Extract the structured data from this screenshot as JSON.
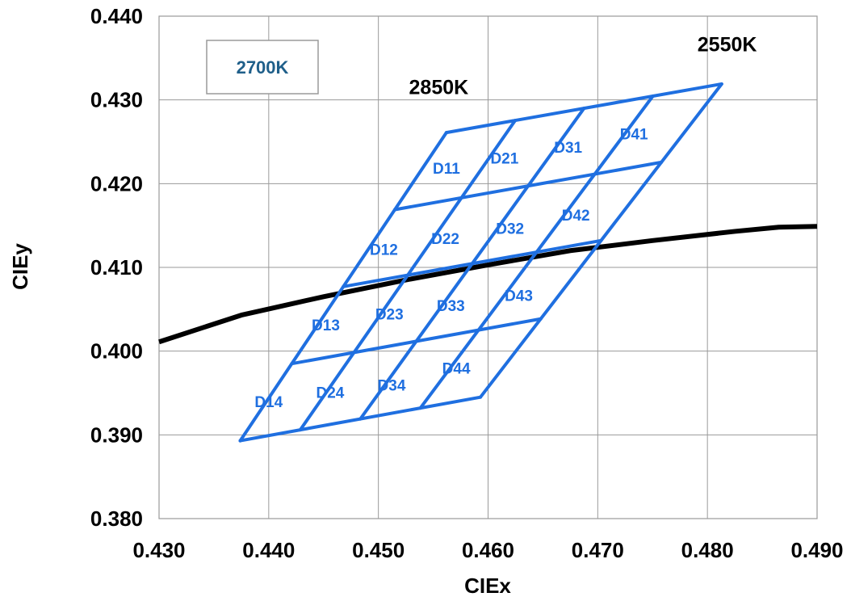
{
  "chart_data": {
    "type": "scatter",
    "xlabel": "CIEx",
    "ylabel": "CIEy",
    "xlim": [
      0.43,
      0.49
    ],
    "ylim": [
      0.38,
      0.44
    ],
    "x_ticks": [
      "0.430",
      "0.440",
      "0.450",
      "0.460",
      "0.470",
      "0.480",
      "0.490"
    ],
    "y_ticks": [
      "0.380",
      "0.390",
      "0.400",
      "0.410",
      "0.420",
      "0.430",
      "0.440"
    ],
    "grid": true,
    "legend_box": "2700K",
    "cct_labels": [
      {
        "text": "2850K",
        "x": 0.4555,
        "y": 0.4307
      },
      {
        "text": "2550K",
        "x": 0.4818,
        "y": 0.4358
      }
    ],
    "planckian_locus": {
      "x": [
        0.43,
        0.4375,
        0.445,
        0.4525,
        0.46,
        0.4675,
        0.475,
        0.4825,
        0.4865,
        0.49
      ],
      "y": [
        0.4011,
        0.4043,
        0.4065,
        0.4085,
        0.4103,
        0.412,
        0.4132,
        0.4143,
        0.4148,
        0.4149
      ]
    },
    "bin_grid": {
      "line_color": "#1f6fe0",
      "corners": {
        "top_left": [
          0.4562,
          0.4261
        ],
        "top_right": [
          0.4813,
          0.4319
        ],
        "bottom_left": [
          0.4374,
          0.3893
        ],
        "bottom_right": [
          0.4593,
          0.3945
        ]
      },
      "divisions": 4,
      "bins": [
        {
          "name": "D11",
          "x": 0.4562,
          "y": 0.4212
        },
        {
          "name": "D21",
          "x": 0.4615,
          "y": 0.4224
        },
        {
          "name": "D31",
          "x": 0.4673,
          "y": 0.4237
        },
        {
          "name": "D41",
          "x": 0.4733,
          "y": 0.4253
        },
        {
          "name": "D12",
          "x": 0.4505,
          "y": 0.4115
        },
        {
          "name": "D22",
          "x": 0.4561,
          "y": 0.4128
        },
        {
          "name": "D32",
          "x": 0.462,
          "y": 0.414
        },
        {
          "name": "D42",
          "x": 0.468,
          "y": 0.4156
        },
        {
          "name": "D13",
          "x": 0.4452,
          "y": 0.4025
        },
        {
          "name": "D23",
          "x": 0.451,
          "y": 0.4038
        },
        {
          "name": "D33",
          "x": 0.4566,
          "y": 0.4048
        },
        {
          "name": "D43",
          "x": 0.4628,
          "y": 0.406
        },
        {
          "name": "D14",
          "x": 0.44,
          "y": 0.3933
        },
        {
          "name": "D24",
          "x": 0.4456,
          "y": 0.3944
        },
        {
          "name": "D34",
          "x": 0.4512,
          "y": 0.3953
        },
        {
          "name": "D44",
          "x": 0.4571,
          "y": 0.3973
        }
      ]
    }
  }
}
